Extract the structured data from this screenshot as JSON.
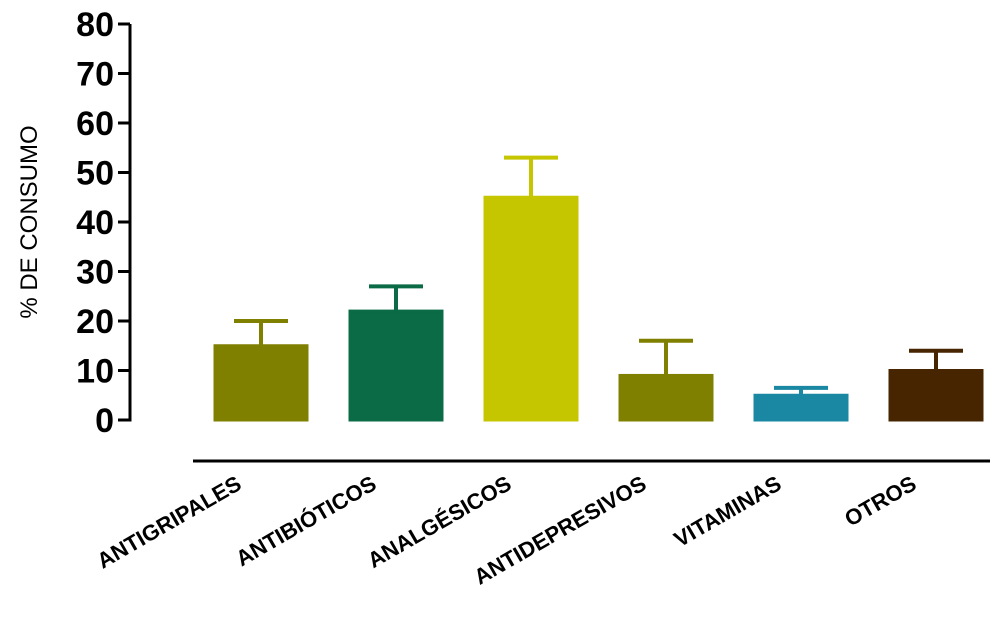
{
  "chart_data": {
    "type": "bar",
    "ylabel": "% DE CONSUMO",
    "xlabel": "",
    "ylim": [
      0,
      80
    ],
    "yticks": [
      0,
      10,
      20,
      30,
      40,
      50,
      60,
      70,
      80
    ],
    "categories": [
      "ANTIGRIPALES",
      "ANTIBIÓTICOS",
      "ANALGÉSICOS",
      "ANTIDEPRESIVOS",
      "VITAMINAS",
      "OTROS"
    ],
    "values": [
      15,
      22,
      45,
      9,
      5,
      10
    ],
    "error": [
      5,
      5,
      8,
      7,
      1.5,
      4
    ],
    "colors": [
      "#7f7f00",
      "#0b6b47",
      "#c5c500",
      "#808000",
      "#1a87a3",
      "#462500"
    ],
    "grid": false,
    "legend": "none"
  }
}
